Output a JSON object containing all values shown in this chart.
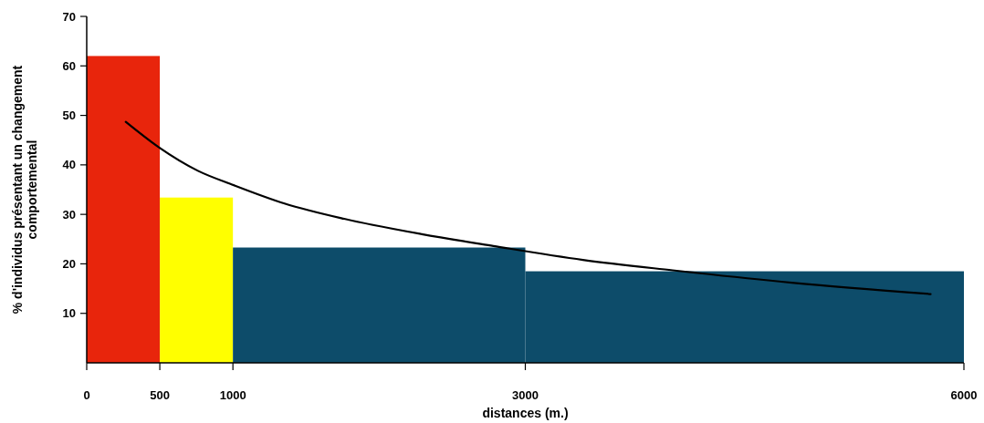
{
  "chart_data": {
    "type": "histogram",
    "xlabel": "distances (m.)",
    "ylabel": "% d'individus présentant un changement\ncomportemental",
    "bins": [
      0,
      500,
      1000,
      3000,
      6000
    ],
    "values": [
      62,
      33.4,
      23.3,
      18.5
    ],
    "colors": [
      "#e8250c",
      "#ffff00",
      "#0d4c6a",
      "#0d4c6a"
    ],
    "series": [
      {
        "type": "line",
        "color": "#000000",
        "x": [
          267,
          496,
          761,
          1006,
          1353,
          1761,
          2292,
          2782,
          3394,
          4007,
          4823,
          5772
        ],
        "values": [
          48.7,
          43.5,
          38.8,
          35.9,
          32.2,
          29.1,
          26.0,
          23.6,
          20.8,
          18.7,
          16.2,
          13.9
        ]
      }
    ],
    "xlim": [
      0,
      6000
    ],
    "xticks": [
      0,
      500,
      1000,
      3000,
      6000
    ],
    "ylim": [
      0,
      70
    ],
    "yticks": [
      10,
      20,
      30,
      40,
      50,
      60,
      70
    ]
  }
}
